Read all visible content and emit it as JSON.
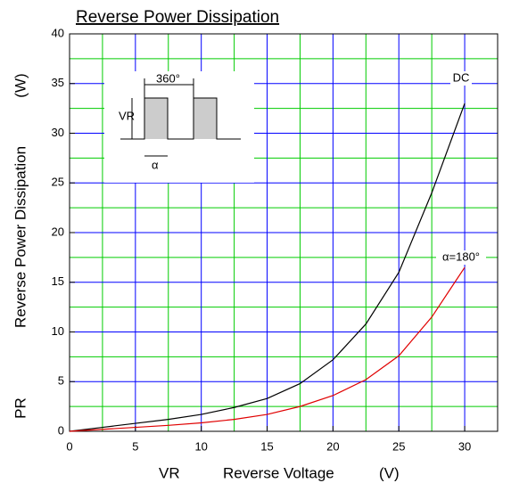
{
  "chart_data": {
    "type": "line",
    "title": "Reverse Power Dissipation",
    "xlabel_symbol": "VR",
    "xlabel": "Reverse Voltage",
    "xlabel_unit": "(V)",
    "ylabel_symbol": "PR",
    "ylabel": "Reverse Power Dissipation",
    "ylabel_unit": "(W)",
    "x": [
      0,
      2.5,
      5,
      7.5,
      10,
      12.5,
      15,
      17.5,
      20,
      22.5,
      25,
      27.5,
      30
    ],
    "series": [
      {
        "name": "DC",
        "color": "#000000",
        "values": [
          0,
          0.4,
          0.8,
          1.2,
          1.7,
          2.4,
          3.3,
          4.8,
          7.2,
          10.8,
          16,
          24,
          33
        ]
      },
      {
        "name": "α=180°",
        "color": "#e00000",
        "values": [
          0,
          0.2,
          0.4,
          0.6,
          0.85,
          1.2,
          1.7,
          2.5,
          3.6,
          5.2,
          7.6,
          11.5,
          16.5
        ]
      }
    ],
    "xlim": [
      0,
      32.5
    ],
    "ylim": [
      0,
      40
    ],
    "xticks": [
      0,
      5,
      10,
      15,
      20,
      25,
      30
    ],
    "yticks": [
      0,
      5,
      10,
      15,
      20,
      25,
      30,
      35,
      40
    ],
    "x_minor_ticks": [
      2.5,
      7.5,
      12.5,
      17.5,
      22.5,
      27.5,
      32.5
    ],
    "y_minor_ticks": [
      2.5,
      7.5,
      12.5,
      17.5,
      22.5,
      27.5,
      32.5,
      37.5
    ],
    "grid": true,
    "major_grid_color": "#0000ff",
    "minor_grid_color": "#00cc00",
    "inset": {
      "period": "360°",
      "amplitude": "VR",
      "width": "α"
    }
  }
}
